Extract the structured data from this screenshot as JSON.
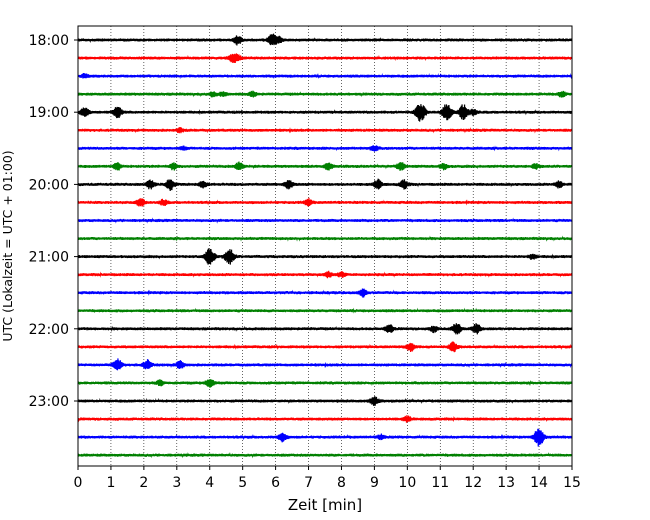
{
  "chart_data": {
    "type": "line",
    "title": "",
    "xlabel": "Zeit  [min]",
    "ylabel": "UTC (Lokalzeit = UTC + 01:00)",
    "xlim": [
      0,
      15
    ],
    "xticks": [
      "0",
      "1",
      "2",
      "3",
      "4",
      "5",
      "6",
      "7",
      "8",
      "9",
      "10",
      "11",
      "12",
      "13",
      "14",
      "15"
    ],
    "grid": "vertical dotted",
    "color_cycle": [
      "#000000",
      "#ff0000",
      "#0000ff",
      "#008000"
    ],
    "yticks": [
      {
        "label": "18:00",
        "trace": 0
      },
      {
        "label": "19:00",
        "trace": 4
      },
      {
        "label": "20:00",
        "trace": 8
      },
      {
        "label": "21:00",
        "trace": 12
      },
      {
        "label": "22:00",
        "trace": 16
      },
      {
        "label": "23:00",
        "trace": 20
      }
    ],
    "series": [
      {
        "start": "18:00",
        "events": [
          [
            4.85,
            0.5
          ],
          [
            5.9,
            0.6
          ],
          [
            6.1,
            0.3
          ]
        ]
      },
      {
        "start": "18:15",
        "events": [
          [
            4.7,
            0.4
          ],
          [
            4.85,
            0.3
          ]
        ]
      },
      {
        "start": "18:30",
        "events": [
          [
            0.2,
            0.2
          ]
        ]
      },
      {
        "start": "18:45",
        "events": [
          [
            4.1,
            0.25
          ],
          [
            4.4,
            0.2
          ],
          [
            5.3,
            0.25
          ],
          [
            14.7,
            0.3
          ]
        ]
      },
      {
        "start": "19:00",
        "events": [
          [
            0.2,
            0.5
          ],
          [
            1.2,
            0.6
          ],
          [
            10.4,
            1.0
          ],
          [
            11.2,
            0.9
          ],
          [
            11.7,
            0.8
          ],
          [
            12.0,
            0.3
          ]
        ]
      },
      {
        "start": "19:15",
        "events": [
          [
            3.1,
            0.2
          ]
        ]
      },
      {
        "start": "19:30",
        "events": [
          [
            9.0,
            0.3
          ],
          [
            3.2,
            0.15
          ]
        ]
      },
      {
        "start": "19:45",
        "events": [
          [
            1.2,
            0.4
          ],
          [
            2.9,
            0.35
          ],
          [
            4.9,
            0.45
          ],
          [
            7.6,
            0.35
          ],
          [
            9.8,
            0.4
          ],
          [
            11.1,
            0.3
          ],
          [
            13.9,
            0.25
          ]
        ]
      },
      {
        "start": "20:00",
        "events": [
          [
            2.2,
            0.45
          ],
          [
            2.8,
            0.6
          ],
          [
            3.8,
            0.35
          ],
          [
            6.4,
            0.45
          ],
          [
            9.1,
            0.5
          ],
          [
            9.9,
            0.45
          ],
          [
            14.6,
            0.35
          ]
        ]
      },
      {
        "start": "20:15",
        "events": [
          [
            1.9,
            0.45
          ],
          [
            2.6,
            0.3
          ],
          [
            7.0,
            0.35
          ]
        ]
      },
      {
        "start": "20:30",
        "events": []
      },
      {
        "start": "20:45",
        "events": []
      },
      {
        "start": "21:00",
        "events": [
          [
            4.0,
            0.9
          ],
          [
            4.6,
            0.8
          ],
          [
            13.8,
            0.25
          ]
        ]
      },
      {
        "start": "21:15",
        "events": [
          [
            7.6,
            0.3
          ],
          [
            8.0,
            0.25
          ]
        ]
      },
      {
        "start": "21:30",
        "events": [
          [
            8.65,
            0.4
          ]
        ]
      },
      {
        "start": "21:45",
        "events": []
      },
      {
        "start": "22:00",
        "events": [
          [
            9.45,
            0.45
          ],
          [
            11.5,
            0.6
          ],
          [
            12.1,
            0.5
          ],
          [
            10.8,
            0.3
          ]
        ]
      },
      {
        "start": "22:15",
        "events": [
          [
            10.1,
            0.45
          ],
          [
            11.4,
            0.5
          ]
        ]
      },
      {
        "start": "22:30",
        "events": [
          [
            1.2,
            0.6
          ],
          [
            2.1,
            0.5
          ],
          [
            3.1,
            0.4
          ]
        ]
      },
      {
        "start": "22:45",
        "events": [
          [
            2.5,
            0.3
          ],
          [
            4.0,
            0.45
          ]
        ]
      },
      {
        "start": "23:00",
        "events": [
          [
            9.0,
            0.45
          ]
        ]
      },
      {
        "start": "23:15",
        "events": [
          [
            10.0,
            0.3
          ]
        ]
      },
      {
        "start": "23:30",
        "events": [
          [
            6.2,
            0.45
          ],
          [
            9.2,
            0.25
          ],
          [
            14.0,
            1.0
          ]
        ]
      },
      {
        "start": "23:45",
        "events": []
      }
    ]
  }
}
